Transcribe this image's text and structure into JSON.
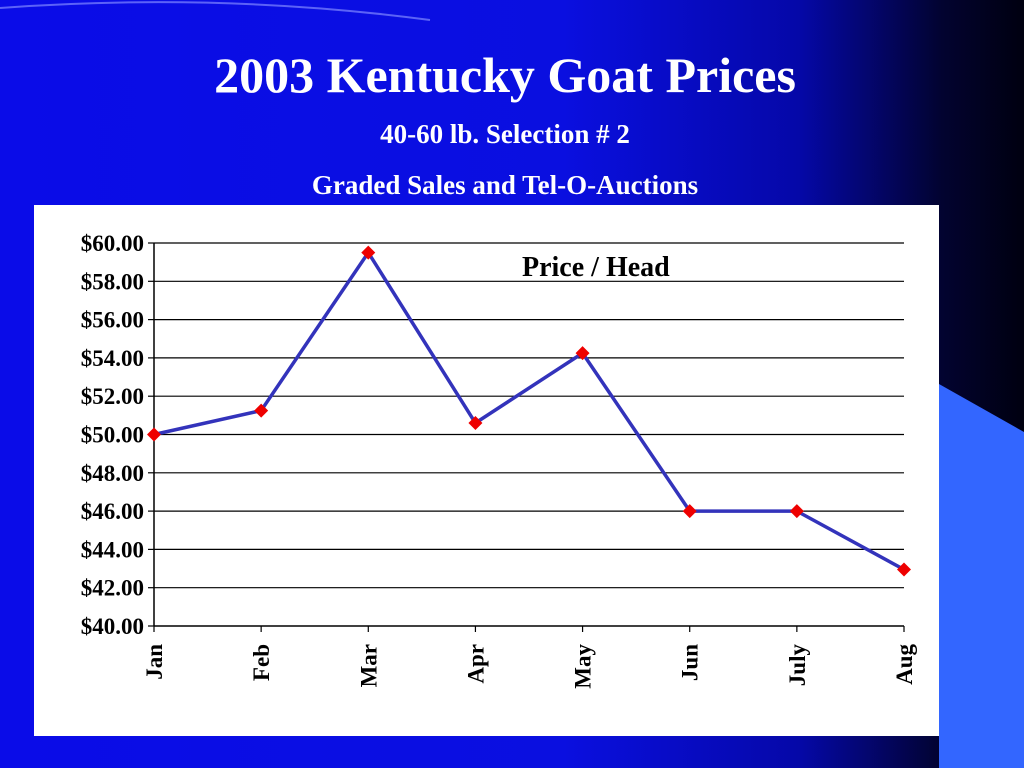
{
  "slide": {
    "title": "2003 Kentucky Goat Prices",
    "subtitle_1": "40-60 lb. Selection # 2",
    "subtitle_2": "Graded Sales and Tel-O-Auctions"
  },
  "colors": {
    "background": "#0a0ce8",
    "line": "#3333bb",
    "marker": "#ee0000",
    "accent_shape": "#3366ff"
  },
  "chart_data": {
    "type": "line",
    "title": "",
    "xlabel": "",
    "ylabel": "",
    "categories": [
      "Jan",
      "Feb",
      "Mar",
      "Apr",
      "May",
      "Jun",
      "July",
      "Aug"
    ],
    "series": [
      {
        "name": "Price / Head",
        "values": [
          50.0,
          51.25,
          59.5,
          50.6,
          54.25,
          46.0,
          46.0,
          42.95
        ]
      }
    ],
    "y_ticks": [
      "$40.00",
      "$42.00",
      "$44.00",
      "$46.00",
      "$48.00",
      "$50.00",
      "$52.00",
      "$54.00",
      "$56.00",
      "$58.00",
      "$60.00"
    ],
    "ylim": [
      40,
      60
    ],
    "grid": true,
    "legend_position": "top-right"
  }
}
